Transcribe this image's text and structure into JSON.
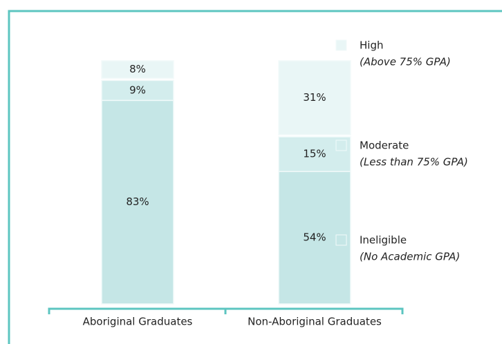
{
  "chart_data": {
    "type": "stacked_bar",
    "categories": [
      "Aboriginal Graduates",
      "Non-Aboriginal Graduates"
    ],
    "series": [
      {
        "name": "Ineligible",
        "note": "(No Academic GPA)",
        "color": "#c5e6e6",
        "values": [
          83,
          54
        ],
        "value_labels": [
          "83%",
          "54%"
        ]
      },
      {
        "name": "Moderate",
        "note": "(Less than 75% GPA)",
        "color": "#d3eded",
        "values": [
          9,
          15
        ],
        "value_labels": [
          "9%",
          "15%"
        ]
      },
      {
        "name": "High",
        "note": "(Above 75% GPA)",
        "color": "#e9f6f6",
        "values": [
          8,
          31
        ],
        "value_labels": [
          "8%",
          "31%"
        ]
      }
    ]
  }
}
